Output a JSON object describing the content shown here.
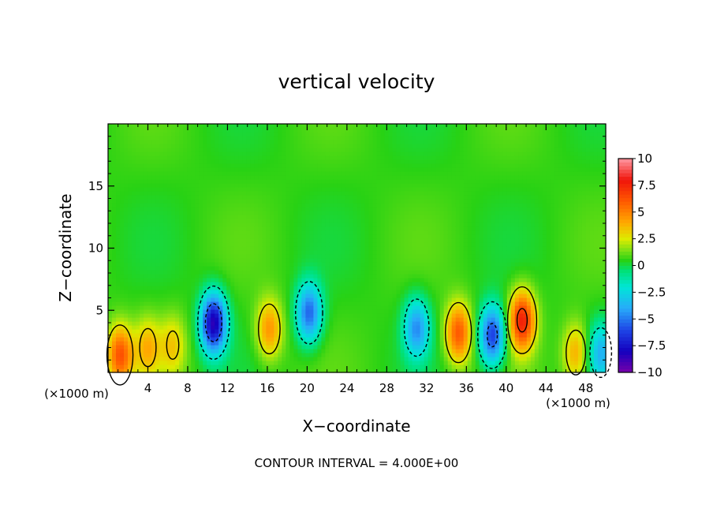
{
  "chart_data": {
    "type": "heatmap",
    "title": "vertical velocity",
    "xlabel": "X−coordinate",
    "ylabel": "Z−coordinate",
    "x_unit_left": "(×1000 m)",
    "x_unit_right": "(×1000 m)",
    "footer": "CONTOUR INTERVAL = 4.000E+00",
    "xlim": [
      0,
      50
    ],
    "ylim": [
      0,
      20
    ],
    "x_ticks": [
      "4",
      "8",
      "12",
      "16",
      "20",
      "24",
      "28",
      "32",
      "36",
      "40",
      "44",
      "48"
    ],
    "x_tick_values": [
      4,
      8,
      12,
      16,
      20,
      24,
      28,
      32,
      36,
      40,
      44,
      48
    ],
    "y_ticks": [
      "5",
      "10",
      "15"
    ],
    "y_tick_values": [
      5,
      10,
      15
    ],
    "colorbar": {
      "range": [
        -10,
        10
      ],
      "tick_labels": [
        "10",
        "7.5",
        "5",
        "2.5",
        "0",
        "−2.5",
        "−5",
        "−7.5",
        "−10"
      ],
      "tick_values": [
        10,
        7.5,
        5,
        2.5,
        0,
        -2.5,
        -5,
        -7.5,
        -10
      ]
    },
    "contour_interval": 4,
    "grid": false,
    "features": [
      {
        "x": 16.2,
        "z": 3.5,
        "w": 4.0,
        "kind": "updraft"
      },
      {
        "x": 10.6,
        "z": 4.0,
        "w": -9.0,
        "kind": "downdraft"
      },
      {
        "x": 41.6,
        "z": 4.2,
        "w": 7.0,
        "kind": "updraft"
      },
      {
        "x": 35.2,
        "z": 3.2,
        "w": 5.5,
        "kind": "updraft"
      },
      {
        "x": 38.6,
        "z": 3.0,
        "w": -7.0,
        "kind": "downdraft"
      },
      {
        "x": 20.2,
        "z": 4.8,
        "w": -6.0,
        "kind": "downdraft"
      },
      {
        "x": 31.0,
        "z": 3.6,
        "w": -5.0,
        "kind": "downdraft"
      },
      {
        "x": 1.2,
        "z": 1.4,
        "w": 5.5,
        "kind": "updraft"
      },
      {
        "x": 47.0,
        "z": 1.6,
        "w": 3.5,
        "kind": "updraft"
      },
      {
        "x": 49.5,
        "z": 1.6,
        "w": -4.0,
        "kind": "downdraft"
      },
      {
        "x": 4.0,
        "z": 2.0,
        "w": 3.0,
        "kind": "updraft"
      },
      {
        "x": 6.5,
        "z": 2.2,
        "w": 2.5,
        "kind": "updraft"
      }
    ]
  }
}
